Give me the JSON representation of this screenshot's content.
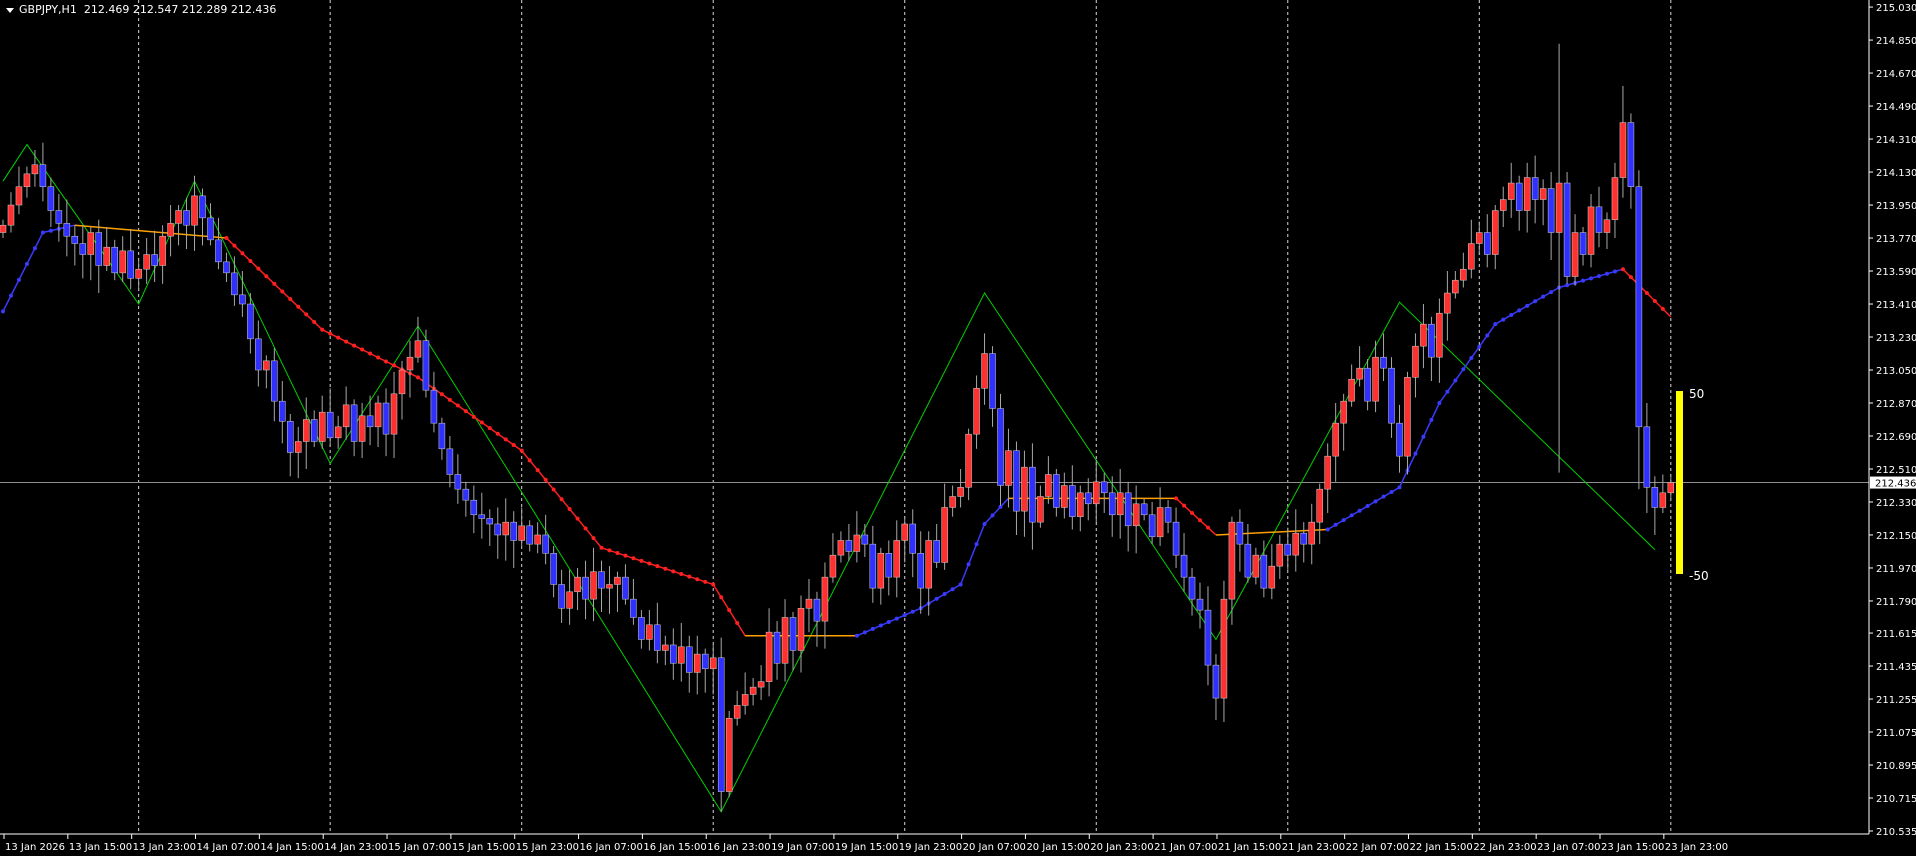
{
  "header": {
    "symbol": "GBPJPY,H1",
    "open": "212.469",
    "high": "212.547",
    "low": "212.289",
    "close": "212.436"
  },
  "colors": {
    "background": "#000000",
    "bull": "#ff3030",
    "bear": "#3030ff",
    "wick": "#a8a8a8",
    "zigzag": "#00d000",
    "ma_up": "#3a3aff",
    "ma_down": "#ff2020",
    "ma_flat": "#ffa000",
    "histogram": "#ffff00",
    "grid": "#ffffff",
    "axis_text": "#ffffff"
  },
  "chart_data": {
    "type": "candlestick",
    "symbol": "GBPJPY",
    "timeframe": "H1",
    "ylim": [
      210.535,
      215.03
    ],
    "y_ticks": [
      "215.030",
      "214.850",
      "214.670",
      "214.490",
      "214.310",
      "214.130",
      "213.950",
      "213.770",
      "213.590",
      "213.410",
      "213.230",
      "213.050",
      "212.870",
      "212.690",
      "212.510",
      "212.330",
      "212.150",
      "211.970",
      "211.790",
      "211.615",
      "211.435",
      "211.255",
      "211.075",
      "210.895",
      "210.715",
      "210.535"
    ],
    "x_ticks": [
      "13 Jan 2026",
      "13 Jan 15:00",
      "13 Jan 23:00",
      "14 Jan 07:00",
      "14 Jan 15:00",
      "14 Jan 23:00",
      "15 Jan 07:00",
      "15 Jan 15:00",
      "15 Jan 23:00",
      "16 Jan 07:00",
      "16 Jan 15:00",
      "16 Jan 23:00",
      "19 Jan 07:00",
      "19 Jan 15:00",
      "19 Jan 23:00",
      "20 Jan 07:00",
      "20 Jan 15:00",
      "20 Jan 23:00",
      "21 Jan 07:00",
      "21 Jan 15:00",
      "21 Jan 23:00",
      "22 Jan 07:00",
      "22 Jan 15:00",
      "22 Jan 23:00",
      "23 Jan 07:00",
      "23 Jan 15:00",
      "23 Jan 23:00"
    ],
    "current_price": "212.436",
    "first_open": 213.8,
    "closes": [
      213.84,
      213.95,
      214.05,
      214.12,
      214.17,
      214.05,
      213.92,
      213.85,
      213.78,
      213.74,
      213.68,
      213.8,
      213.62,
      213.72,
      213.58,
      213.7,
      213.55,
      213.6,
      213.68,
      213.62,
      213.78,
      213.85,
      213.92,
      213.84,
      214.0,
      213.88,
      213.76,
      213.64,
      213.58,
      213.46,
      213.41,
      213.22,
      213.05,
      213.1,
      212.88,
      212.77,
      212.6,
      212.66,
      212.78,
      212.66,
      212.82,
      212.68,
      212.74,
      212.86,
      212.66,
      212.8,
      212.74,
      212.87,
      212.7,
      212.92,
      213.05,
      213.12,
      213.21,
      212.94,
      212.76,
      212.62,
      212.48,
      212.4,
      212.34,
      212.26,
      212.24,
      212.21,
      212.15,
      212.22,
      212.12,
      212.2,
      212.1,
      212.15,
      212.05,
      211.88,
      211.75,
      211.84,
      211.92,
      211.8,
      211.95,
      211.86,
      211.88,
      211.92,
      211.8,
      211.7,
      211.58,
      211.66,
      211.52,
      211.55,
      211.45,
      211.54,
      211.4,
      211.5,
      211.42,
      211.48,
      210.75,
      211.15,
      211.22,
      211.28,
      211.32,
      211.35,
      211.62,
      211.45,
      211.7,
      211.52,
      211.75,
      211.8,
      211.68,
      211.92,
      212.04,
      212.12,
      212.06,
      212.15,
      212.1,
      211.86,
      212.05,
      211.92,
      212.12,
      212.21,
      212.05,
      211.86,
      212.12,
      212.0,
      212.3,
      212.36,
      212.41,
      212.7,
      212.95,
      213.14,
      212.84,
      212.42,
      212.61,
      212.28,
      212.52,
      212.22,
      212.36,
      212.48,
      212.3,
      212.42,
      212.25,
      212.38,
      212.32,
      212.44,
      212.38,
      212.26,
      212.38,
      212.2,
      212.32,
      212.26,
      212.14,
      212.3,
      212.22,
      212.04,
      211.92,
      211.8,
      211.74,
      211.44,
      211.26,
      211.8,
      212.22,
      212.1,
      211.92,
      212.04,
      211.86,
      211.98,
      212.1,
      212.04,
      212.16,
      212.1,
      212.22,
      212.4,
      212.58,
      212.76,
      212.88,
      213.0,
      213.06,
      212.88,
      213.12,
      213.06,
      212.76,
      212.58,
      213.01,
      213.18,
      213.3,
      213.12,
      213.36,
      213.47,
      213.54,
      213.6,
      213.74,
      213.8,
      213.68,
      213.92,
      213.98,
      214.07,
      213.92,
      214.1,
      213.98,
      214.04,
      213.8,
      214.07,
      213.56,
      213.8,
      213.68,
      213.94,
      213.8,
      213.87,
      214.1,
      214.4,
      214.05,
      212.74,
      212.41,
      212.3,
      212.38,
      212.436
    ],
    "wick_overrides": [
      {
        "bar": 90,
        "low": 210.64
      },
      {
        "bar": 195,
        "high": 214.83,
        "low": 212.49
      },
      {
        "bar": 203,
        "high": 214.6
      },
      {
        "bar": 205,
        "low": 212.4
      }
    ],
    "zigzag": [
      [
        0,
        214.08
      ],
      [
        3,
        214.28
      ],
      [
        17,
        213.41
      ],
      [
        24,
        214.08
      ],
      [
        41,
        212.54
      ],
      [
        52,
        213.29
      ],
      [
        90,
        210.64
      ],
      [
        123,
        213.47
      ],
      [
        152,
        211.58
      ],
      [
        175,
        213.42
      ],
      [
        207,
        212.07
      ]
    ],
    "moving_average": [
      [
        0,
        213.37
      ],
      [
        5,
        213.8
      ],
      [
        9,
        213.84
      ],
      [
        28,
        213.77
      ],
      [
        40,
        213.27
      ],
      [
        52,
        213.01
      ],
      [
        65,
        212.61
      ],
      [
        75,
        212.08
      ],
      [
        89,
        211.88
      ],
      [
        93,
        211.6
      ],
      [
        107,
        211.6
      ],
      [
        115,
        211.75
      ],
      [
        120,
        211.88
      ],
      [
        123,
        212.21
      ],
      [
        126,
        212.35
      ],
      [
        147,
        212.35
      ],
      [
        152,
        212.15
      ],
      [
        166,
        212.18
      ],
      [
        175,
        212.41
      ],
      [
        180,
        212.87
      ],
      [
        187,
        213.3
      ],
      [
        195,
        213.5
      ],
      [
        203,
        213.6
      ],
      [
        209,
        213.34
      ]
    ],
    "histogram": {
      "upper_label": "50",
      "lower_label": "-50",
      "upper_level": 50,
      "lower_level": -50
    }
  }
}
